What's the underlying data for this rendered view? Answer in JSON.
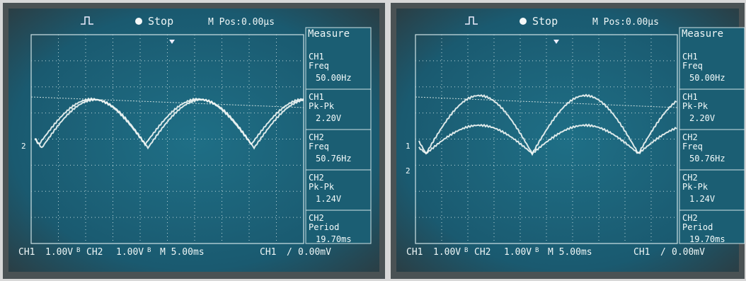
{
  "screens": [
    {
      "status": "Stop",
      "position": "M Pos:0.00µs",
      "menu": "Measure",
      "measurements": [
        {
          "channel": "CH1",
          "label": "Freq",
          "value": "50.00Hz"
        },
        {
          "channel": "CH1",
          "label": "Pk-Pk",
          "value": "2.20V"
        },
        {
          "channel": "CH2",
          "label": "Freq",
          "value": "50.76Hz"
        },
        {
          "channel": "CH2",
          "label": "Pk-Pk",
          "value": "1.24V"
        },
        {
          "channel": "CH2",
          "label": "Period",
          "value": "19.70ms"
        }
      ],
      "footer": {
        "ch1": "CH1",
        "ch1_scale": "1.00V",
        "ch1_bw": "B",
        "ch2": "CH2",
        "ch2_scale": "1.00V",
        "ch2_bw": "B",
        "timebase": "M 5.00ms",
        "trigger_source": "CH1",
        "trigger_slope": "/",
        "trigger_level": "0.00mV"
      },
      "markers": [
        "2"
      ]
    },
    {
      "status": "Stop",
      "position": "M Pos:0.00µs",
      "menu": "Measure",
      "measurements": [
        {
          "channel": "CH1",
          "label": "Freq",
          "value": "50.00Hz"
        },
        {
          "channel": "CH1",
          "label": "Pk-Pk",
          "value": "2.20V"
        },
        {
          "channel": "CH2",
          "label": "Freq",
          "value": "50.76Hz"
        },
        {
          "channel": "CH2",
          "label": "Pk-Pk",
          "value": "1.24V"
        },
        {
          "channel": "CH2",
          "label": "Period",
          "value": "19.70ms"
        }
      ],
      "footer": {
        "ch1": "CH1",
        "ch1_scale": "1.00V",
        "ch1_bw": "B",
        "ch2": "CH2",
        "ch2_scale": "1.00V",
        "ch2_bw": "B",
        "timebase": "M 5.00ms",
        "trigger_source": "CH1",
        "trigger_slope": "/",
        "trigger_level": "0.00mV"
      },
      "markers": [
        "1",
        "2"
      ]
    }
  ]
}
